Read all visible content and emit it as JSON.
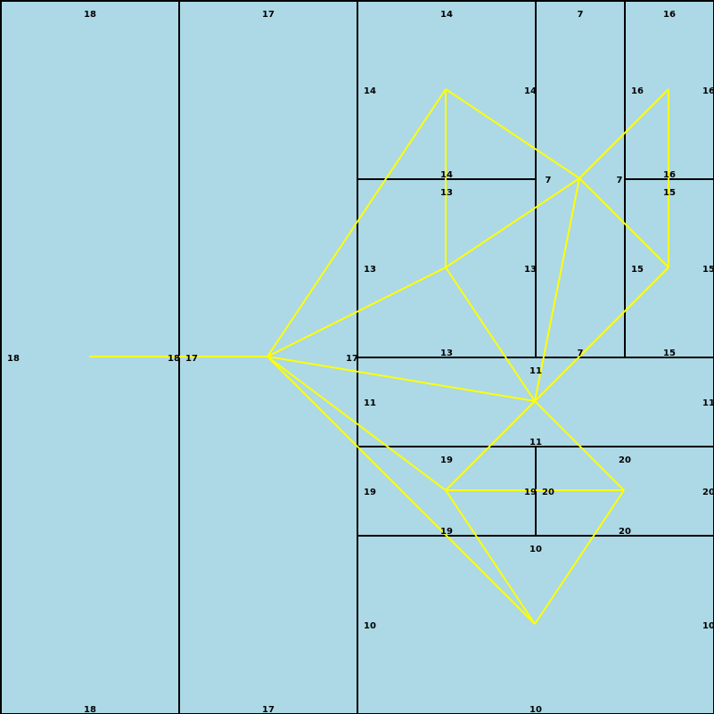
{
  "colors": {
    "region_fill": "#add8e6",
    "region_border": "#000000",
    "edge": "#ffff00",
    "label": "#000000"
  },
  "regions": [
    {
      "id": "18",
      "labels": {
        "top": "18",
        "bottom": "18",
        "left": "18",
        "right": "18"
      }
    },
    {
      "id": "17",
      "labels": {
        "top": "17",
        "bottom": "17",
        "left": "17",
        "right": "17"
      }
    },
    {
      "id": "14",
      "labels": {
        "top": "14",
        "bottom": "14",
        "left": "14",
        "right": "14"
      }
    },
    {
      "id": "7",
      "labels": {
        "top": "7",
        "bottom": "7",
        "left": "7",
        "right": "7"
      }
    },
    {
      "id": "16",
      "labels": {
        "top": "16",
        "bottom": "16",
        "left": "16",
        "right": "16"
      }
    },
    {
      "id": "13",
      "labels": {
        "top": "13",
        "bottom": "13",
        "left": "13",
        "right": "13"
      }
    },
    {
      "id": "15",
      "labels": {
        "top": "15",
        "bottom": "15",
        "left": "15",
        "right": "15"
      }
    },
    {
      "id": "11",
      "labels": {
        "top": "11",
        "bottom": "11",
        "left": "11",
        "right": "11"
      }
    },
    {
      "id": "19",
      "labels": {
        "top": "19",
        "bottom": "19",
        "left": "19",
        "right": "19"
      }
    },
    {
      "id": "20",
      "labels": {
        "top": "20",
        "bottom": "20",
        "left": "20",
        "right": "20"
      }
    },
    {
      "id": "10",
      "labels": {
        "top": "10",
        "bottom": "10",
        "left": "10",
        "right": "10"
      }
    }
  ],
  "adjacency_edges": [
    [
      "18",
      "17"
    ],
    [
      "17",
      "14"
    ],
    [
      "17",
      "13"
    ],
    [
      "17",
      "11"
    ],
    [
      "17",
      "19"
    ],
    [
      "17",
      "10"
    ],
    [
      "14",
      "7"
    ],
    [
      "14",
      "13"
    ],
    [
      "7",
      "16"
    ],
    [
      "7",
      "15"
    ],
    [
      "7",
      "13"
    ],
    [
      "7",
      "11"
    ],
    [
      "16",
      "15"
    ],
    [
      "13",
      "11"
    ],
    [
      "15",
      "11"
    ],
    [
      "11",
      "19"
    ],
    [
      "11",
      "20"
    ],
    [
      "19",
      "20"
    ],
    [
      "19",
      "10"
    ],
    [
      "20",
      "10"
    ]
  ]
}
